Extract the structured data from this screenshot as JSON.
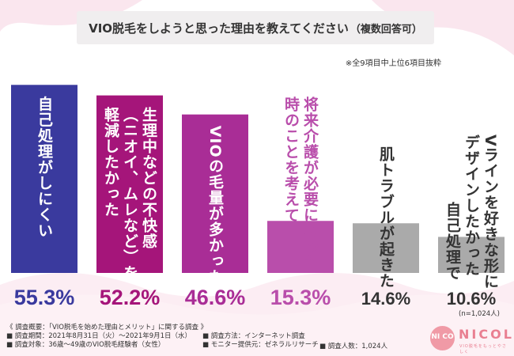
{
  "title": "VIO脱毛をしようと思った理由を教えてください",
  "title_suffix": "（複数回答可）",
  "note": "※全9項目中上位6項目抜粋",
  "chart_data": {
    "type": "bar",
    "title": "VIO脱毛をしようと思った理由を教えてください（複数回答可）",
    "categories": [
      "自己処理がしにくい",
      "生理中などの不快感（ニオイ、ムレなど）を軽減したかった",
      "VIOの毛量が多かった",
      "将来介護が必要になった時のことを考えて",
      "肌トラブルが起きた",
      "自己処理でVラインを好きな形にデザインしたかった"
    ],
    "values": [
      55.3,
      52.2,
      46.6,
      15.3,
      14.6,
      10.6
    ],
    "value_labels": [
      "55.3%",
      "52.2%",
      "46.6%",
      "15.3%",
      "14.6%",
      "10.6%"
    ],
    "label_columns": [
      [
        "自己処理がしにくい"
      ],
      [
        "生理中などの不快感",
        "（ニオイ、ムレなど）を",
        "軽減したかった"
      ],
      [
        "VIOの毛量が多かった"
      ],
      [
        "将来介護が必要になった",
        "時のことを考えて"
      ],
      [
        "肌トラブルが起きた"
      ],
      [
        "Vラインを好きな形に",
        "デザインしたかった",
        "自己処理で"
      ]
    ],
    "colors": [
      "#3a3a9e",
      "#a5157a",
      "#a92d96",
      "#b94eab",
      "#aaaaaa",
      "#aaaaaa"
    ],
    "label_colors": [
      "#ffffff",
      "#ffffff",
      "#ffffff",
      "#b94eab",
      "#333333",
      "#333333"
    ],
    "pct_colors": [
      "#3a3a9e",
      "#a5157a",
      "#a92d96",
      "#b94eab",
      "#333333",
      "#333333"
    ],
    "ylim": [
      0,
      60
    ],
    "grid": false
  },
  "respondents": "(n=1,024人)",
  "footer": {
    "line1": "《 調査概要：「VIO脱毛を始めた理由とメリット」に関する調査 》",
    "line2": "■ 調査期間：2021年8月31日（火）〜2021年9月1日（水）",
    "line3": "■ 調査対象：36歳〜49歳のVIO脱毛経験者（女性）",
    "line4": "■ 調査方法：インターネット調査",
    "line5": "■ モニター提供元：ゼネラルリサーチ",
    "line6": "■ 調査人数：1,024人"
  },
  "logo": {
    "mark": "NI CO",
    "name": "NICOL",
    "sub": "VIO脱毛をもっとやさしく"
  }
}
